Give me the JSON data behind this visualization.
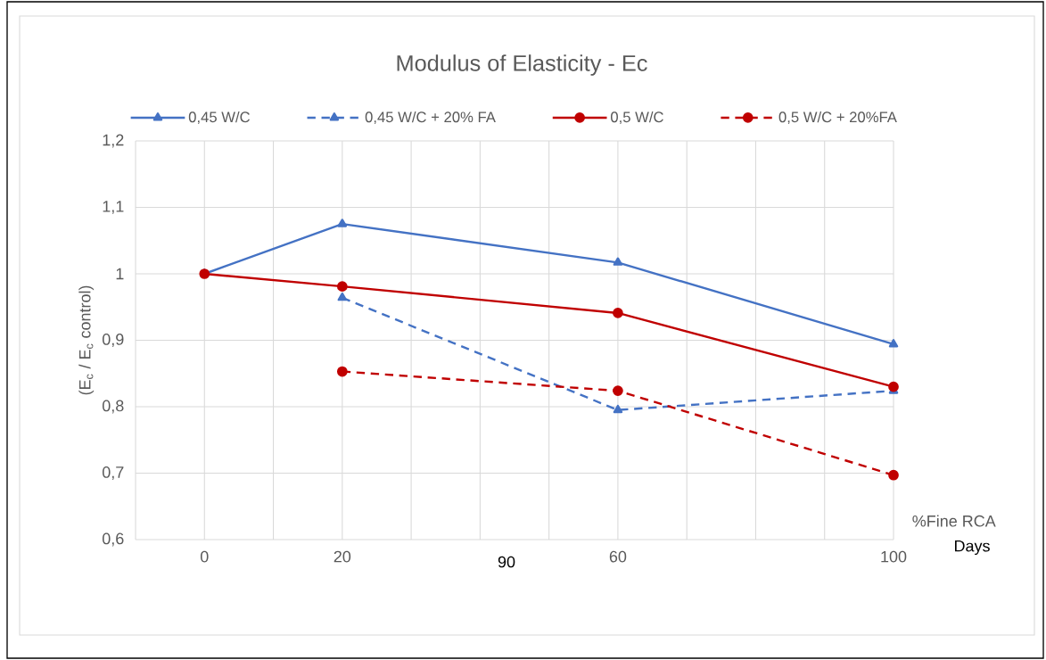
{
  "chart_data": {
    "type": "line",
    "title": "Modulus of Elasticity - Ec",
    "xlabel": "%Fine RCA",
    "ylabel": "(E$_{c}$ / E$_{c}$ control)",
    "x": [
      0,
      20,
      60,
      100
    ],
    "series": [
      {
        "name": "0,45 W/C",
        "color": "#4472c4",
        "marker": "triangle",
        "line_style": "solid",
        "values": [
          1.0,
          1.075,
          1.017,
          0.894
        ]
      },
      {
        "name": "0,45 W/C + 20% FA",
        "color": "#4472c4",
        "marker": "triangle",
        "line_style": "dashed",
        "values": [
          null,
          0.964,
          0.795,
          0.824
        ]
      },
      {
        "name": "0,5 W/C",
        "color": "#c00000",
        "marker": "circle",
        "line_style": "solid",
        "values": [
          1.0,
          0.981,
          0.941,
          0.83
        ]
      },
      {
        "name": "0,5 W/C + 20%FA",
        "color": "#c00000",
        "marker": "circle",
        "line_style": "dashed",
        "values": [
          null,
          0.853,
          0.824,
          0.697
        ]
      }
    ],
    "xlim": [
      -10,
      100
    ],
    "xticks": [
      {
        "value": -10,
        "label": null
      },
      0,
      {
        "value": 10,
        "label": null
      },
      20,
      {
        "value": 30,
        "label": null
      },
      {
        "value": 40,
        "label": null
      },
      {
        "value": 50,
        "label": null
      },
      60,
      {
        "value": 70,
        "label": null
      },
      {
        "value": 80,
        "label": null
      },
      {
        "value": 90,
        "label": null
      },
      100
    ],
    "ylim": [
      0.6,
      1.2
    ],
    "yticks": [
      {
        "value": 0.6,
        "label": "0,6"
      },
      {
        "value": 0.7,
        "label": "0,7"
      },
      {
        "value": 0.8,
        "label": "0,8"
      },
      {
        "value": 0.9,
        "label": "0,9"
      },
      {
        "value": 1.0,
        "label": "1"
      },
      {
        "value": 1.1,
        "label": "1,1"
      },
      {
        "value": 1.2,
        "label": "1,2"
      }
    ],
    "grid": true,
    "legend": "top",
    "annotations": [
      "90",
      "Days"
    ]
  }
}
